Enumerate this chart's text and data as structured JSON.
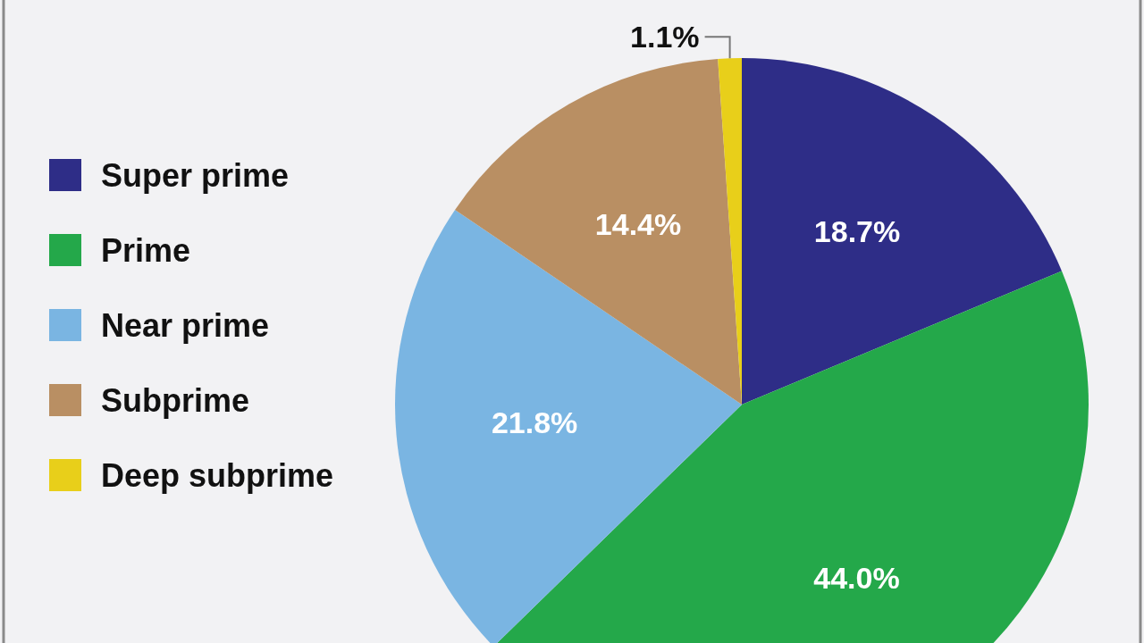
{
  "chart_data": {
    "type": "pie",
    "categories": [
      "Super prime",
      "Prime",
      "Near prime",
      "Subprime",
      "Deep subprime"
    ],
    "values": [
      18.7,
      44.0,
      21.8,
      14.4,
      1.1
    ],
    "colors": [
      "#2e2d87",
      "#24a84a",
      "#7ab5e2",
      "#b98f63",
      "#e8cf1a"
    ],
    "value_labels": [
      "18.7%",
      "44.0%",
      "21.8%",
      "14.4%",
      "1.1%"
    ],
    "legend": "left"
  }
}
